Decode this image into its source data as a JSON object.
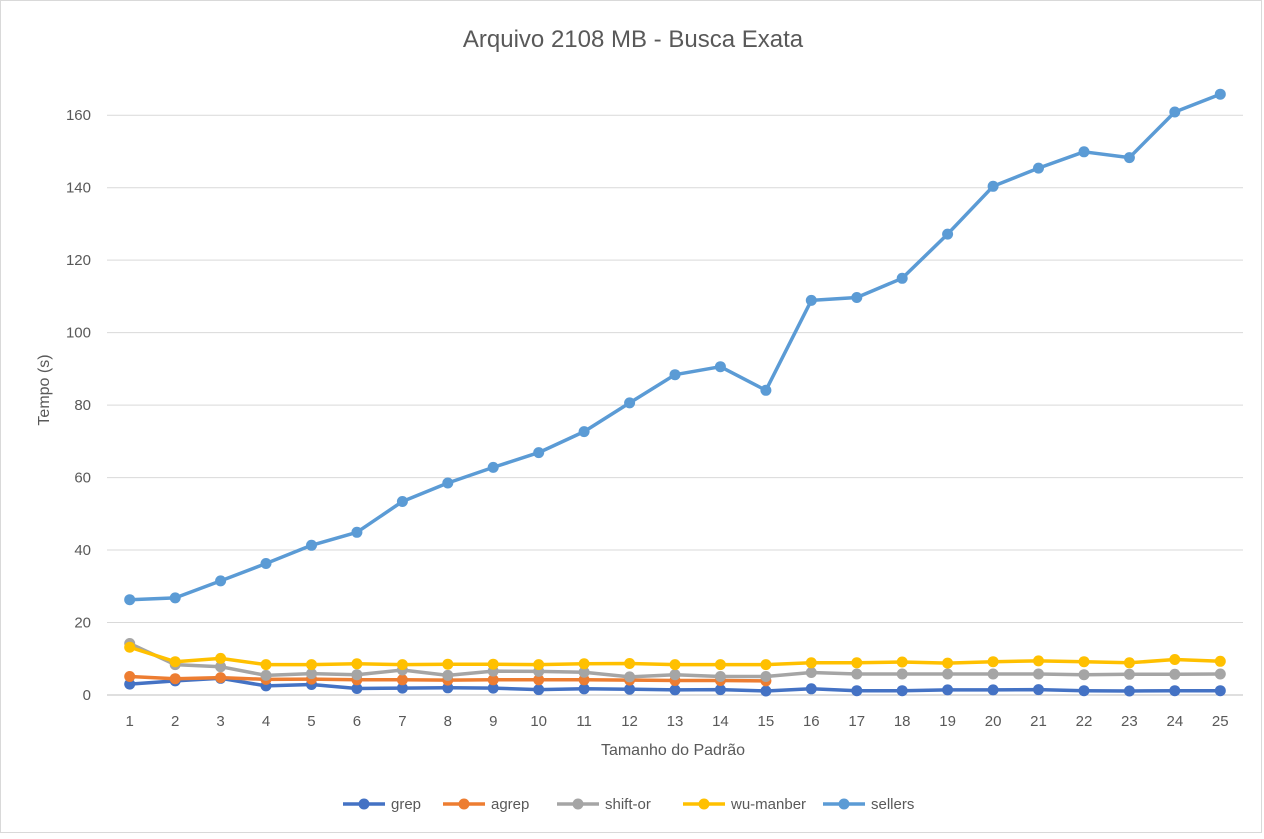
{
  "chart_data": {
    "type": "line",
    "title": "Arquivo 2108 MB - Busca Exata",
    "xlabel": "Tamanho do Padrão",
    "ylabel": "Tempo (s)",
    "categories": [
      "1",
      "2",
      "3",
      "4",
      "5",
      "6",
      "7",
      "8",
      "9",
      "10",
      "11",
      "12",
      "13",
      "14",
      "15",
      "16",
      "17",
      "18",
      "19",
      "20",
      "21",
      "22",
      "23",
      "24",
      "25"
    ],
    "ylim": [
      0,
      170
    ],
    "yticks": [
      0,
      20,
      40,
      60,
      80,
      100,
      120,
      140,
      160
    ],
    "grid": true,
    "legend_position": "bottom",
    "series": [
      {
        "name": "grep",
        "color": "#4472c4",
        "values": [
          3.0,
          3.9,
          4.6,
          2.5,
          2.9,
          1.8,
          1.9,
          2.0,
          1.9,
          1.5,
          1.7,
          1.6,
          1.4,
          1.5,
          1.1,
          1.7,
          1.2,
          1.2,
          1.4,
          1.4,
          1.5,
          1.2,
          1.1,
          1.2,
          1.2
        ]
      },
      {
        "name": "agrep",
        "color": "#ed7d31",
        "values": [
          5.1,
          4.5,
          4.8,
          4.3,
          4.4,
          4.2,
          4.2,
          4.1,
          4.2,
          4.2,
          4.2,
          4.1,
          4.0,
          4.0,
          3.9,
          null,
          null,
          null,
          null,
          null,
          null,
          null,
          null,
          null,
          null
        ]
      },
      {
        "name": "shift-or",
        "color": "#a5a5a5",
        "values": [
          14.2,
          8.4,
          7.8,
          5.4,
          5.9,
          5.6,
          6.9,
          5.4,
          6.6,
          6.5,
          6.3,
          5.0,
          5.6,
          5.1,
          5.1,
          6.2,
          5.8,
          5.8,
          5.8,
          5.8,
          5.8,
          5.6,
          5.7,
          5.7,
          5.8
        ]
      },
      {
        "name": "wu-manber",
        "color": "#ffc000",
        "values": [
          13.2,
          9.2,
          10.1,
          8.4,
          8.4,
          8.6,
          8.4,
          8.5,
          8.5,
          8.4,
          8.6,
          8.7,
          8.4,
          8.4,
          8.4,
          8.9,
          8.9,
          9.1,
          8.8,
          9.2,
          9.4,
          9.2,
          8.9,
          9.8,
          9.3
        ]
      },
      {
        "name": "sellers",
        "color": "#5b9bd5",
        "values": [
          26.3,
          26.8,
          31.5,
          36.3,
          41.3,
          44.9,
          53.4,
          58.5,
          62.8,
          66.9,
          72.7,
          80.6,
          88.4,
          90.6,
          84.1,
          108.9,
          109.7,
          115.0,
          127.2,
          140.4,
          145.4,
          149.9,
          148.3,
          160.9,
          165.8
        ]
      }
    ]
  }
}
